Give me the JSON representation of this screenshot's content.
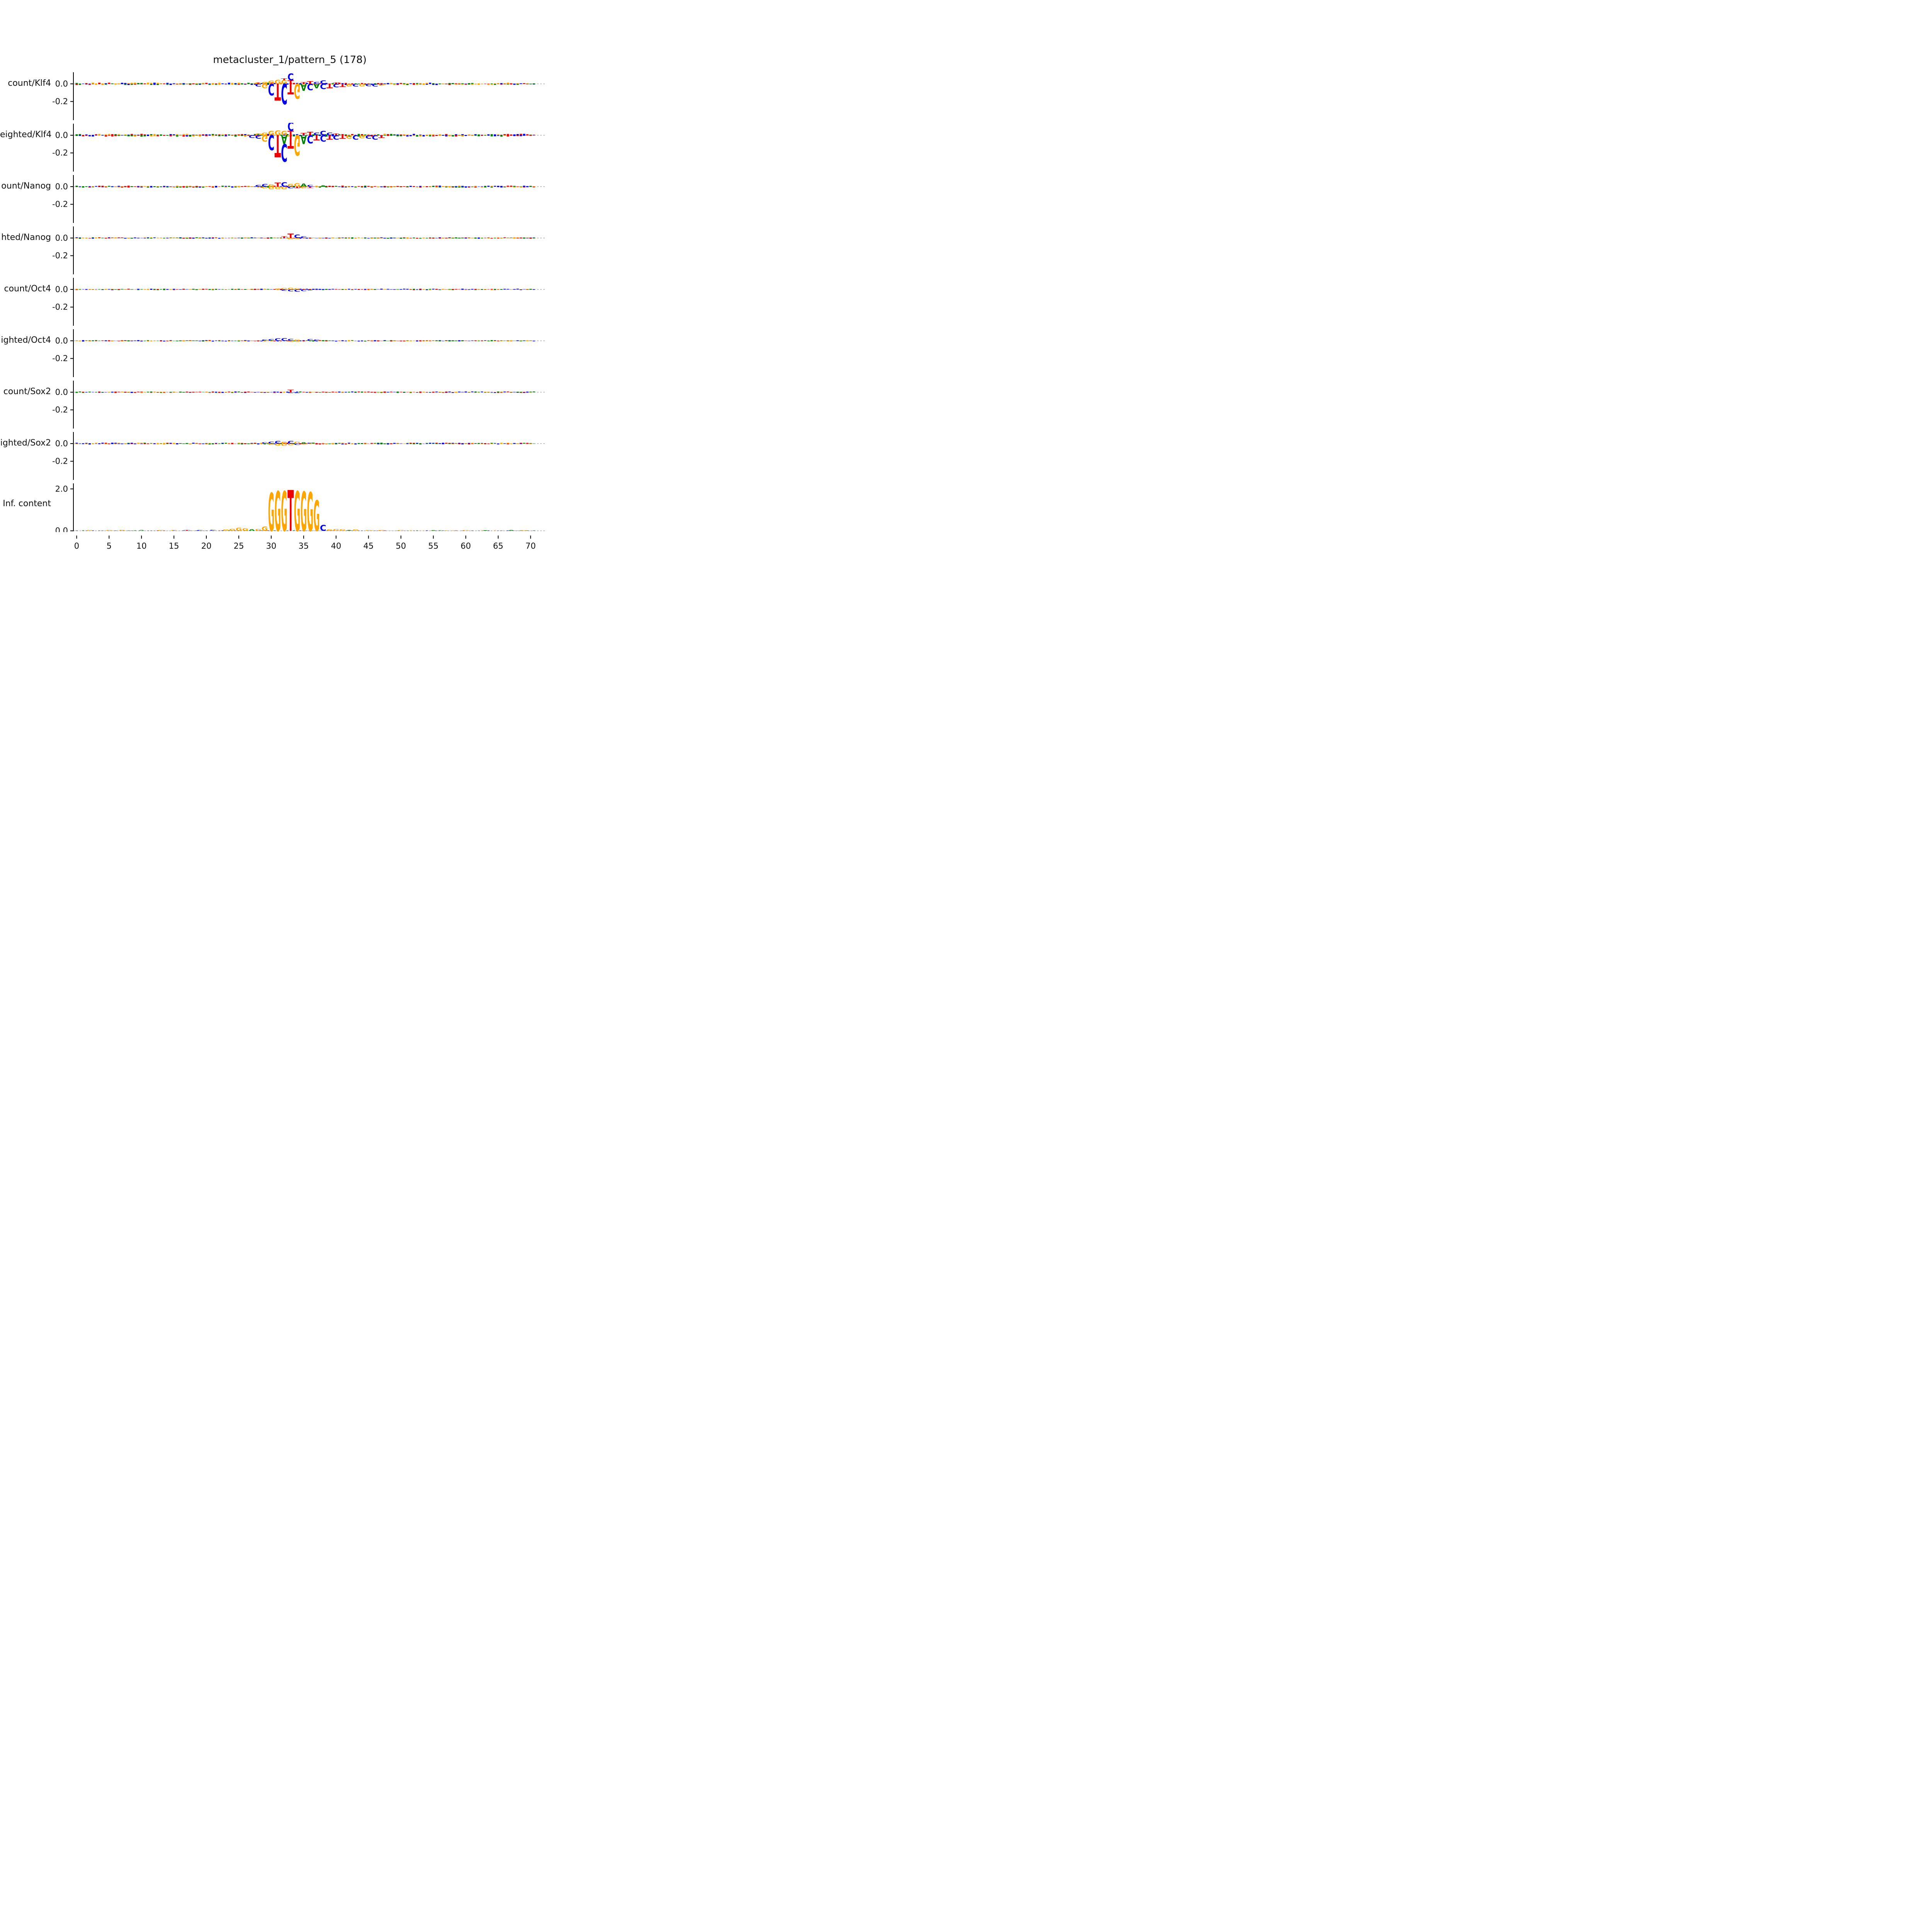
{
  "chart_data": {
    "type": "sequence_logo_tracks",
    "title": "metacluster_1/pattern_5 (178)",
    "xlim": [
      -0.5,
      71
    ],
    "x_ticks": [
      0,
      5,
      10,
      15,
      20,
      25,
      30,
      35,
      40,
      45,
      50,
      55,
      60,
      65,
      70
    ],
    "legend": "none",
    "grid": "off",
    "letter_colors": {
      "A": "#008000",
      "C": "#0000EE",
      "G": "#FFA500",
      "T": "#EE0000"
    },
    "zero_line_color": "#808080",
    "tracks": [
      {
        "label": "count/Klf4",
        "ylim": [
          -0.42,
          0.14
        ],
        "y_ticks": [
          {
            "v": 0.0,
            "label": "0.0"
          },
          {
            "v": -0.2,
            "label": "-0.2"
          }
        ],
        "noise_amp": 0.012,
        "letters": [
          [
            28,
            "G",
            0.018
          ],
          [
            29,
            "G",
            0.022
          ],
          [
            30,
            "G",
            0.038
          ],
          [
            31,
            "G",
            0.045
          ],
          [
            32,
            "G",
            0.042
          ],
          [
            32,
            "T",
            0.02
          ],
          [
            33,
            "T",
            0.04
          ],
          [
            33,
            "C",
            0.08
          ],
          [
            35,
            "T",
            0.02
          ],
          [
            36,
            "T",
            0.03
          ],
          [
            37,
            "C",
            0.022
          ],
          [
            38,
            "C",
            0.04
          ],
          [
            40,
            "T",
            0.015
          ],
          [
            28,
            "C",
            -0.03
          ],
          [
            29,
            "G",
            -0.05
          ],
          [
            30,
            "C",
            -0.13
          ],
          [
            31,
            "T",
            -0.19
          ],
          [
            32,
            "C",
            -0.23
          ],
          [
            33,
            "T",
            -0.12
          ],
          [
            34,
            "G",
            -0.17
          ],
          [
            35,
            "A",
            -0.08
          ],
          [
            36,
            "C",
            -0.07
          ],
          [
            37,
            "A",
            -0.05
          ],
          [
            38,
            "C",
            -0.06
          ],
          [
            39,
            "T",
            -0.05
          ],
          [
            40,
            "C",
            -0.04
          ],
          [
            41,
            "T",
            -0.035
          ],
          [
            42,
            "G",
            -0.03
          ],
          [
            43,
            "C",
            -0.03
          ],
          [
            44,
            "G",
            -0.028
          ],
          [
            45,
            "C",
            -0.025
          ],
          [
            46,
            "C",
            -0.03
          ],
          [
            47,
            "G",
            -0.02
          ]
        ]
      },
      {
        "label": "eighted/Klf4",
        "ylim": [
          -0.42,
          0.14
        ],
        "y_ticks": [
          {
            "v": 0.0,
            "label": "0.0"
          },
          {
            "v": -0.2,
            "label": "-0.2"
          }
        ],
        "noise_amp": 0.014,
        "letters": [
          [
            28,
            "G",
            0.02
          ],
          [
            29,
            "G",
            0.03
          ],
          [
            30,
            "G",
            0.05
          ],
          [
            31,
            "G",
            0.055
          ],
          [
            32,
            "G",
            0.05
          ],
          [
            33,
            "T",
            0.05
          ],
          [
            33,
            "C",
            0.1
          ],
          [
            35,
            "T",
            0.025
          ],
          [
            36,
            "T",
            0.04
          ],
          [
            37,
            "C",
            0.03
          ],
          [
            38,
            "C",
            0.05
          ],
          [
            39,
            "C",
            0.03
          ],
          [
            40,
            "T",
            0.02
          ],
          [
            27,
            "C",
            -0.03
          ],
          [
            28,
            "C",
            -0.04
          ],
          [
            29,
            "G",
            -0.07
          ],
          [
            30,
            "C",
            -0.17
          ],
          [
            31,
            "T",
            -0.25
          ],
          [
            32,
            "A",
            -0.1
          ],
          [
            32,
            "C",
            -0.2
          ],
          [
            33,
            "T",
            -0.15
          ],
          [
            34,
            "G",
            -0.23
          ],
          [
            35,
            "A",
            -0.1
          ],
          [
            36,
            "C",
            -0.09
          ],
          [
            37,
            "T",
            -0.06
          ],
          [
            38,
            "C",
            -0.07
          ],
          [
            39,
            "T",
            -0.05
          ],
          [
            40,
            "C",
            -0.05
          ],
          [
            41,
            "T",
            -0.04
          ],
          [
            42,
            "G",
            -0.04
          ],
          [
            43,
            "C",
            -0.05
          ],
          [
            44,
            "G",
            -0.035
          ],
          [
            45,
            "C",
            -0.04
          ],
          [
            46,
            "C",
            -0.05
          ],
          [
            47,
            "T",
            -0.03
          ]
        ]
      },
      {
        "label": "ount/Nanog",
        "ylim": [
          -0.42,
          0.14
        ],
        "y_ticks": [
          {
            "v": 0.0,
            "label": "0.0"
          },
          {
            "v": -0.2,
            "label": "-0.2"
          }
        ],
        "noise_amp": 0.01,
        "letters": [
          [
            28,
            "C",
            0.02
          ],
          [
            29,
            "C",
            0.03
          ],
          [
            30,
            "G",
            0.025
          ],
          [
            31,
            "T",
            0.045
          ],
          [
            32,
            "C",
            0.05
          ],
          [
            33,
            "G",
            0.03
          ],
          [
            34,
            "G",
            0.04
          ],
          [
            35,
            "A",
            0.035
          ],
          [
            36,
            "C",
            0.02
          ],
          [
            38,
            "A",
            0.015
          ],
          [
            29,
            "G",
            -0.02
          ],
          [
            30,
            "G",
            -0.03
          ],
          [
            31,
            "G",
            -0.028
          ],
          [
            32,
            "G",
            -0.03
          ],
          [
            33,
            "C",
            -0.02
          ],
          [
            34,
            "T",
            -0.018
          ],
          [
            35,
            "G",
            -0.02
          ],
          [
            36,
            "T",
            -0.015
          ]
        ]
      },
      {
        "label": "hted/Nanog",
        "ylim": [
          -0.42,
          0.14
        ],
        "y_ticks": [
          {
            "v": 0.0,
            "label": "0.0"
          },
          {
            "v": -0.2,
            "label": "-0.2"
          }
        ],
        "noise_amp": 0.007,
        "letters": [
          [
            32,
            "T",
            0.02
          ],
          [
            33,
            "T",
            0.05
          ],
          [
            34,
            "C",
            0.04
          ],
          [
            35,
            "C",
            0.02
          ],
          [
            33,
            "G",
            -0.015
          ],
          [
            34,
            "G",
            -0.012
          ]
        ]
      },
      {
        "label": "count/Oct4",
        "ylim": [
          -0.42,
          0.14
        ],
        "y_ticks": [
          {
            "v": 0.0,
            "label": "0.0"
          },
          {
            "v": -0.2,
            "label": "-0.2"
          }
        ],
        "noise_amp": 0.007,
        "letters": [
          [
            31,
            "G",
            0.012
          ],
          [
            32,
            "G",
            0.018
          ],
          [
            33,
            "G",
            0.02
          ],
          [
            34,
            "G",
            0.015
          ],
          [
            32,
            "C",
            -0.015
          ],
          [
            33,
            "C",
            -0.022
          ],
          [
            34,
            "C",
            -0.025
          ],
          [
            35,
            "C",
            -0.02
          ],
          [
            36,
            "C",
            -0.012
          ]
        ]
      },
      {
        "label": "ighted/Oct4",
        "ylim": [
          -0.42,
          0.14
        ],
        "y_ticks": [
          {
            "v": 0.0,
            "label": "0.0"
          },
          {
            "v": -0.2,
            "label": "-0.2"
          }
        ],
        "noise_amp": 0.007,
        "letters": [
          [
            29,
            "C",
            0.015
          ],
          [
            30,
            "C",
            0.02
          ],
          [
            31,
            "C",
            0.028
          ],
          [
            32,
            "C",
            0.03
          ],
          [
            33,
            "C",
            0.022
          ],
          [
            34,
            "G",
            0.015
          ],
          [
            36,
            "C",
            0.02
          ],
          [
            37,
            "C",
            0.015
          ],
          [
            33,
            "G",
            -0.012
          ],
          [
            34,
            "G",
            -0.01
          ]
        ]
      },
      {
        "label": "count/Sox2",
        "ylim": [
          -0.42,
          0.14
        ],
        "y_ticks": [
          {
            "v": 0.0,
            "label": "0.0"
          },
          {
            "v": -0.2,
            "label": "-0.2"
          }
        ],
        "noise_amp": 0.007,
        "letters": [
          [
            33,
            "T",
            0.028
          ],
          [
            33,
            "C",
            -0.012
          ],
          [
            34,
            "C",
            -0.01
          ]
        ]
      },
      {
        "label": "ighted/Sox2",
        "ylim": [
          -0.42,
          0.14
        ],
        "y_ticks": [
          {
            "v": 0.0,
            "label": "0.0"
          },
          {
            "v": -0.2,
            "label": "-0.2"
          }
        ],
        "noise_amp": 0.009,
        "letters": [
          [
            29,
            "C",
            0.015
          ],
          [
            30,
            "C",
            0.022
          ],
          [
            31,
            "C",
            0.03
          ],
          [
            32,
            "G",
            0.022
          ],
          [
            33,
            "C",
            0.03
          ],
          [
            34,
            "G",
            0.022
          ],
          [
            35,
            "A",
            0.015
          ],
          [
            36,
            "C",
            0.012
          ],
          [
            30,
            "G",
            -0.015
          ],
          [
            31,
            "G",
            -0.022
          ],
          [
            32,
            "G",
            -0.026
          ],
          [
            33,
            "G",
            -0.02
          ],
          [
            34,
            "C",
            -0.015
          ],
          [
            35,
            "G",
            -0.012
          ]
        ]
      },
      {
        "label": "Inf. content",
        "ylim": [
          -0.06,
          2.3
        ],
        "y_ticks": [
          {
            "v": 2.0,
            "label": "2.0"
          },
          {
            "v": 0.0,
            "label": "0.0"
          }
        ],
        "noise_amp": 0.02,
        "letters": [
          [
            2,
            "G",
            0.03
          ],
          [
            5,
            "G",
            0.04
          ],
          [
            7,
            "G",
            0.05
          ],
          [
            10,
            "A",
            0.03
          ],
          [
            13,
            "G",
            0.04
          ],
          [
            15,
            "G",
            0.03
          ],
          [
            17,
            "T",
            0.04
          ],
          [
            19,
            "C",
            0.03
          ],
          [
            21,
            "C",
            0.05
          ],
          [
            23,
            "G",
            0.06
          ],
          [
            24,
            "G",
            0.1
          ],
          [
            25,
            "G",
            0.14
          ],
          [
            26,
            "G",
            0.12
          ],
          [
            27,
            "A",
            0.07
          ],
          [
            28,
            "G",
            0.08
          ],
          [
            29,
            "G",
            0.2
          ],
          [
            30,
            "G",
            1.82
          ],
          [
            31,
            "G",
            1.9
          ],
          [
            32,
            "G",
            1.9
          ],
          [
            33,
            "T",
            1.95
          ],
          [
            34,
            "G",
            1.9
          ],
          [
            35,
            "G",
            1.88
          ],
          [
            36,
            "G",
            1.85
          ],
          [
            37,
            "G",
            1.45
          ],
          [
            38,
            "C",
            0.28
          ],
          [
            39,
            "G",
            0.06
          ],
          [
            40,
            "G",
            0.08
          ],
          [
            41,
            "G",
            0.07
          ],
          [
            42,
            "A",
            0.04
          ],
          [
            43,
            "G",
            0.06
          ],
          [
            45,
            "G",
            0.04
          ],
          [
            47,
            "G",
            0.03
          ],
          [
            50,
            "G",
            0.03
          ],
          [
            55,
            "A",
            0.02
          ],
          [
            60,
            "G",
            0.03
          ],
          [
            63,
            "A",
            0.02
          ],
          [
            67,
            "A",
            0.03
          ],
          [
            69,
            "G",
            0.02
          ]
        ]
      }
    ]
  }
}
